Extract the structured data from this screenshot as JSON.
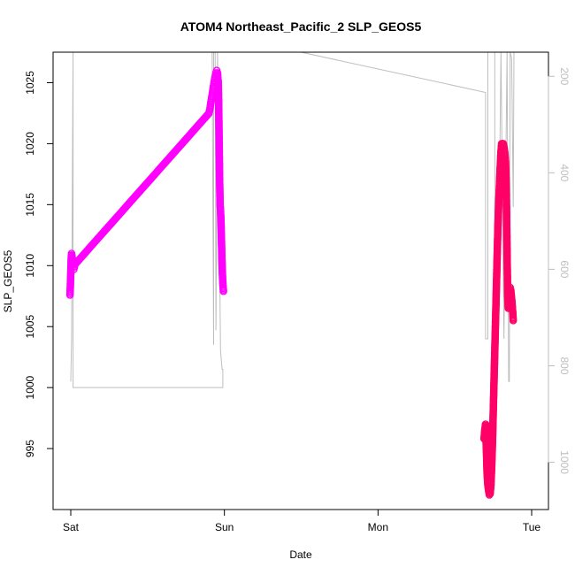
{
  "chart_data": {
    "type": "scatter",
    "title": "ATOM4 Northeast_Pacific_2 SLP_GEOS5",
    "xlabel": "Date",
    "ylabel": "SLP_GEOS5",
    "x_range": [
      0,
      3.0
    ],
    "ylim": [
      990.0,
      1027.5
    ],
    "y2lim": [
      1098,
      150
    ],
    "x_ticks": [
      {
        "label": "Sat",
        "value": 0
      },
      {
        "label": "Sun",
        "value": 1
      },
      {
        "label": "Mon",
        "value": 2
      },
      {
        "label": "Tue",
        "value": 3
      }
    ],
    "y_ticks": [
      995,
      1000,
      1005,
      1010,
      1015,
      1020,
      1025
    ],
    "y2_ticks": [
      200,
      400,
      600,
      800,
      1000
    ],
    "colors": {
      "early": "#ff00ff",
      "late": "#ff0066",
      "secondary": "#bebebe",
      "axis": "#000000"
    },
    "series": [
      {
        "color": "#ff00ff",
        "points": [
          [
            -0.005,
            1007.6
          ],
          [
            -0.003,
            1008.2
          ],
          [
            -0.001,
            1009.0
          ],
          [
            0.001,
            1009.8
          ],
          [
            0.003,
            1010.6
          ],
          [
            0.005,
            1011.0
          ],
          [
            0.008,
            1010.8
          ],
          [
            0.011,
            1010.5
          ],
          [
            0.014,
            1010.2
          ],
          [
            0.017,
            1009.9
          ],
          [
            0.02,
            1009.7
          ],
          [
            0.024,
            1009.9
          ],
          [
            0.027,
            1010.1
          ],
          [
            0.9,
            1022.5
          ],
          [
            0.905,
            1022.8
          ],
          [
            0.91,
            1023.2
          ],
          [
            0.915,
            1023.6
          ],
          [
            0.92,
            1024.0
          ],
          [
            0.925,
            1024.4
          ],
          [
            0.93,
            1024.8
          ],
          [
            0.935,
            1025.2
          ],
          [
            0.94,
            1025.5
          ],
          [
            0.945,
            1025.8
          ],
          [
            0.95,
            1026.0
          ],
          [
            0.955,
            1025.8
          ],
          [
            0.96,
            1025.0
          ],
          [
            0.963,
            1023.0
          ],
          [
            0.966,
            1020.0
          ],
          [
            0.969,
            1017.0
          ],
          [
            0.972,
            1015.0
          ],
          [
            0.975,
            1014.5
          ],
          [
            0.978,
            1013.5
          ],
          [
            0.981,
            1012.0
          ],
          [
            0.984,
            1010.5
          ],
          [
            0.987,
            1009.3
          ],
          [
            0.99,
            1008.5
          ],
          [
            0.994,
            1007.9
          ]
        ]
      },
      {
        "color": "#ff0066",
        "points": [
          [
            2.69,
            995.8
          ],
          [
            2.695,
            996.5
          ],
          [
            2.7,
            997.0
          ],
          [
            2.705,
            995.0
          ],
          [
            2.71,
            993.0
          ],
          [
            2.715,
            992.0
          ],
          [
            2.72,
            991.5
          ],
          [
            2.725,
            991.2
          ],
          [
            2.73,
            991.3
          ],
          [
            2.735,
            992.0
          ],
          [
            2.74,
            993.5
          ],
          [
            2.745,
            995.5
          ],
          [
            2.75,
            998.0
          ],
          [
            2.755,
            1000.5
          ],
          [
            2.76,
            1003.0
          ],
          [
            2.765,
            1005.5
          ],
          [
            2.77,
            1008.0
          ],
          [
            2.775,
            1010.5
          ],
          [
            2.78,
            1013.0
          ],
          [
            2.785,
            1015.0
          ],
          [
            2.79,
            1016.5
          ],
          [
            2.795,
            1018.0
          ],
          [
            2.8,
            1019.3
          ],
          [
            2.805,
            1020.0
          ],
          [
            2.81,
            1020.0
          ],
          [
            2.815,
            1020.0
          ],
          [
            2.82,
            1019.7
          ],
          [
            2.825,
            1019.3
          ],
          [
            2.83,
            1018.5
          ],
          [
            2.835,
            1016.0
          ],
          [
            2.838,
            1013.0
          ],
          [
            2.841,
            1010.0
          ],
          [
            2.844,
            1007.5
          ],
          [
            2.848,
            1006.5
          ],
          [
            2.852,
            1007.0
          ],
          [
            2.856,
            1007.8
          ],
          [
            2.86,
            1008.2
          ],
          [
            2.864,
            1008.0
          ],
          [
            2.868,
            1007.5
          ],
          [
            2.872,
            1007.0
          ],
          [
            2.876,
            1006.3
          ],
          [
            2.88,
            1005.5
          ]
        ]
      }
    ],
    "secondary_series": {
      "color": "#bebebe",
      "points": [
        [
          0.0,
          1000.5
        ],
        [
          0.005,
          1004
        ],
        [
          0.012,
          1021
        ],
        [
          0.015,
          1028
        ],
        [
          0.015,
          1000
        ],
        [
          0.99,
          1000
        ],
        [
          0.99,
          1001.5
        ],
        [
          0.985,
          1001.5
        ],
        [
          0.975,
          1003
        ],
        [
          0.955,
          1028
        ],
        [
          0.945,
          1004.7
        ],
        [
          0.94,
          1028
        ],
        [
          0.93,
          1027.5
        ],
        [
          0.93,
          1003.5
        ],
        [
          0.92,
          1028
        ],
        [
          1.5,
          1027.5
        ],
        [
          2.7,
          1024.2
        ],
        [
          2.7,
          1004.0
        ],
        [
          2.715,
          1004.0
        ],
        [
          2.715,
          1028
        ],
        [
          2.76,
          1028
        ],
        [
          2.76,
          1004.0
        ],
        [
          2.78,
          1004.0
        ],
        [
          2.8,
          1028
        ],
        [
          2.82,
          1004.0
        ],
        [
          2.84,
          1028
        ],
        [
          2.85,
          1000.5
        ],
        [
          2.855,
          1000.5
        ],
        [
          2.86,
          1028
        ],
        [
          2.87,
          1027
        ],
        [
          2.88,
          1014.8
        ],
        [
          2.885,
          1027.5
        ]
      ]
    }
  }
}
